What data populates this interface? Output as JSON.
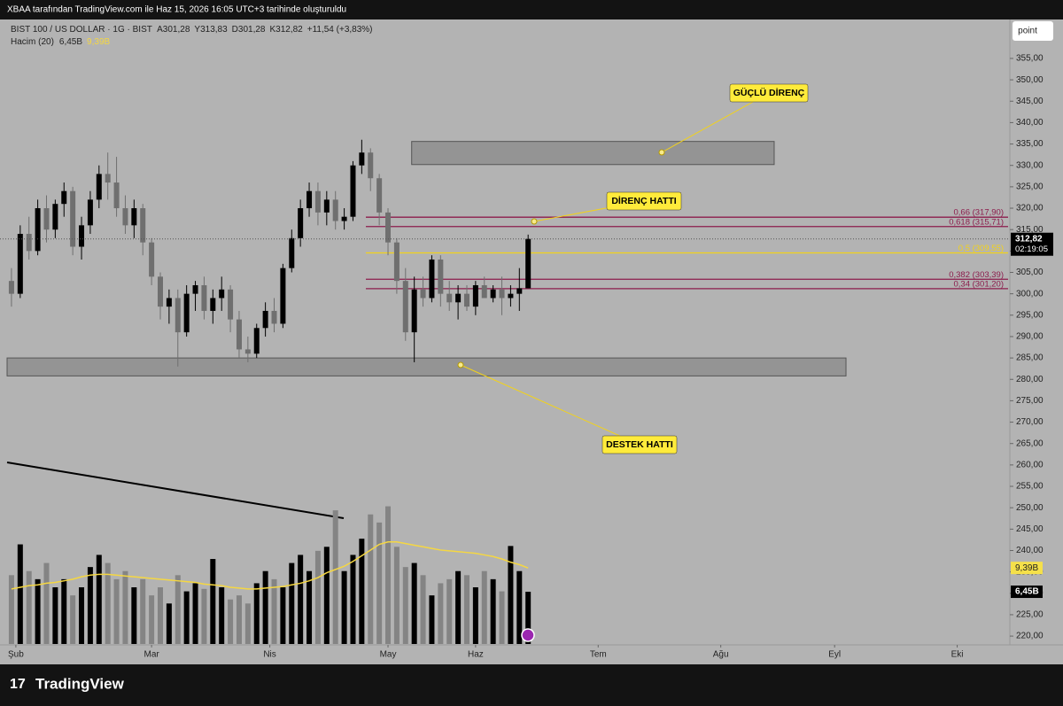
{
  "chart_data": {
    "type": "candlestick",
    "credit": "XBAA tarafından TradingView.com ile Haz 15, 2026 16:05 UTC+3 tarihinde oluşturuldu",
    "title": "BIST 100 / US DOLLAR · 1G · BIST",
    "ohlc_labels": [
      "A301,28",
      "Y313,83",
      "D301,28",
      "K312,82",
      "+11,54 (+3,83%)"
    ],
    "button": "point",
    "footer": "TradingView",
    "up_color": "#000000",
    "down_color": "#6f6f6f",
    "open": [
      303,
      300,
      314,
      310,
      320,
      315,
      321,
      324,
      311,
      316,
      322,
      328,
      326,
      320,
      316,
      320,
      312,
      304,
      297,
      299,
      291,
      300,
      302,
      296,
      299,
      301,
      294,
      287,
      286,
      292,
      296,
      293,
      306,
      313,
      320,
      324,
      319,
      322,
      317,
      318,
      330,
      333,
      327,
      319,
      312,
      303,
      291,
      301,
      299,
      308,
      300,
      298,
      300,
      297,
      302,
      299,
      301,
      299,
      300,
      301.28
    ],
    "high": [
      306,
      316,
      318,
      322,
      323,
      322,
      326,
      325,
      318,
      324,
      330,
      333,
      332,
      323,
      322,
      321,
      313,
      305,
      301,
      301,
      302,
      303,
      304,
      301,
      304,
      302,
      296,
      290,
      293,
      298,
      299,
      307,
      315,
      322,
      326,
      326,
      324,
      324,
      320,
      331,
      336,
      334,
      328,
      320,
      313,
      306,
      304,
      304,
      309,
      309,
      303,
      302,
      302,
      303,
      304,
      302,
      304,
      302,
      306,
      313.83
    ],
    "low": [
      297,
      299,
      308,
      309,
      312,
      313,
      318,
      309,
      308,
      314,
      320,
      322,
      318,
      314,
      313,
      309,
      302,
      294,
      293,
      283,
      290,
      296,
      294,
      293,
      296,
      291,
      285,
      284,
      285,
      290,
      291,
      292,
      305,
      311,
      318,
      316,
      316,
      315,
      315,
      317,
      328,
      324,
      316,
      309,
      300,
      289,
      284,
      297,
      298,
      297,
      296,
      294,
      296,
      295,
      300,
      298,
      295,
      297,
      296,
      301.28
    ],
    "close": [
      300,
      314,
      310,
      320,
      315,
      321,
      324,
      311,
      316,
      322,
      328,
      326,
      320,
      316,
      320,
      312,
      304,
      297,
      299,
      291,
      300,
      302,
      296,
      299,
      301,
      294,
      287,
      286,
      292,
      296,
      293,
      306,
      313,
      320,
      324,
      319,
      322,
      317,
      318,
      330,
      333,
      327,
      319,
      312,
      303,
      291,
      301,
      299,
      308,
      300,
      298,
      300,
      297,
      302,
      299,
      301,
      299,
      300,
      301.28,
      312.82
    ],
    "close_label": "312,82",
    "countdown": "02:19:05",
    "volume": {
      "title": "Hacim (20)",
      "values": [
        8.5,
        12.3,
        9,
        8,
        10,
        7,
        8,
        6,
        7,
        9.5,
        11,
        10,
        8,
        9,
        7,
        8,
        6,
        7,
        5,
        8.5,
        6.5,
        7.5,
        6.8,
        10.5,
        7,
        5.5,
        6,
        5,
        7.5,
        9,
        8,
        7,
        10,
        11,
        9,
        11.5,
        12,
        16.5,
        9,
        11,
        13,
        16,
        15,
        17,
        12,
        9.5,
        10,
        8.5,
        6,
        7.5,
        8,
        9,
        8.5,
        7,
        9,
        8,
        6.5,
        12.1,
        9,
        6.45
      ],
      "last_label": "6,45B",
      "ylim": [
        0,
        21
      ]
    },
    "volume_ma": {
      "color": "#f5d742",
      "values": [
        6.8,
        7,
        7.2,
        7.3,
        7.5,
        7.6,
        7.8,
        8,
        8.3,
        8.5,
        8.6,
        8.6,
        8.5,
        8.4,
        8.3,
        8.2,
        8.1,
        8,
        7.9,
        7.8,
        7.7,
        7.6,
        7.4,
        7.3,
        7.2,
        7,
        6.9,
        6.8,
        6.8,
        6.9,
        7,
        7.1,
        7.3,
        7.5,
        7.8,
        8.2,
        8.8,
        9.2,
        9.6,
        10.2,
        10.9,
        11.6,
        12.3,
        12.6,
        12.6,
        12.4,
        12.2,
        12,
        11.8,
        11.6,
        11.5,
        11.4,
        11.3,
        11.2,
        11,
        10.8,
        10.5,
        10.1,
        9.8,
        9.39
      ],
      "last_label": "9,39B"
    },
    "xlim": [
      -0.5,
      113
    ],
    "xticks": [
      {
        "value": 0.5,
        "label": "Şub"
      },
      {
        "value": 16,
        "label": "Mar"
      },
      {
        "value": 29.5,
        "label": "Nis"
      },
      {
        "value": 43,
        "label": "May"
      },
      {
        "value": 53,
        "label": "Haz"
      },
      {
        "value": 67,
        "label": "Tem"
      },
      {
        "value": 81,
        "label": "Ağu"
      },
      {
        "value": 94,
        "label": "Eyl"
      },
      {
        "value": 108,
        "label": "Eki"
      }
    ],
    "ylim": [
      216.5,
      364.1
    ],
    "yticks": [
      {
        "value": 220,
        "label": "220,00"
      },
      {
        "value": 225,
        "label": "225,00"
      },
      {
        "value": 230,
        "label": "230,00"
      },
      {
        "value": 235,
        "label": "235,00"
      },
      {
        "value": 240,
        "label": "240,00"
      },
      {
        "value": 245,
        "label": "245,00"
      },
      {
        "value": 250,
        "label": "250,00"
      },
      {
        "value": 255,
        "label": "255,00"
      },
      {
        "value": 260,
        "label": "260,00"
      },
      {
        "value": 265,
        "label": "265,00"
      },
      {
        "value": 270,
        "label": "270,00"
      },
      {
        "value": 275,
        "label": "275,00"
      },
      {
        "value": 280,
        "label": "280,00"
      },
      {
        "value": 285,
        "label": "285,00"
      },
      {
        "value": 290,
        "label": "290,00"
      },
      {
        "value": 295,
        "label": "295,00"
      },
      {
        "value": 300,
        "label": "300,00"
      },
      {
        "value": 305,
        "label": "305,00"
      },
      {
        "value": 310,
        "label": "310,00"
      },
      {
        "value": 315,
        "label": "315,00"
      },
      {
        "value": 320,
        "label": "320,00"
      },
      {
        "value": 325,
        "label": "325,00"
      },
      {
        "value": 330,
        "label": "330,00"
      },
      {
        "value": 335,
        "label": "335,00"
      },
      {
        "value": 340,
        "label": "340,00"
      },
      {
        "value": 345,
        "label": "345,00"
      },
      {
        "value": 350,
        "label": "350,00"
      },
      {
        "value": 355,
        "label": "355,00"
      }
    ],
    "fib_levels": [
      {
        "label": "0,66 (317,90)",
        "value": 317.9,
        "color": "#8c1c4c"
      },
      {
        "label": "0,618 (315,71)",
        "value": 315.71,
        "color": "#8c1c4c"
      },
      {
        "label": "0,5 (309,55)",
        "value": 309.55,
        "color": "#f2d21b"
      },
      {
        "label": "0,382 (303,39)",
        "value": 303.39,
        "color": "#8c1c4c"
      },
      {
        "label": "0,34 (301,20)",
        "value": 301.2,
        "color": "#8c1c4c"
      }
    ],
    "zones": [
      {
        "x": [
          45.7,
          87.1
        ],
        "y": [
          330.2,
          335.6
        ]
      },
      {
        "x": [
          -0.5,
          95.3
        ],
        "y": [
          280.8,
          285
        ]
      }
    ],
    "annotations": [
      "GÜÇLÜ DİRENÇ",
      "DİRENÇ HATTI",
      "DESTEK HATTI"
    ]
  }
}
